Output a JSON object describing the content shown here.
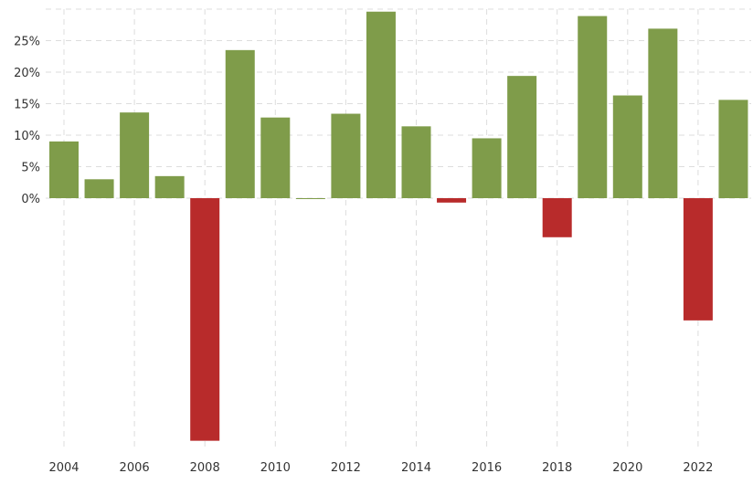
{
  "chart_data": {
    "type": "bar",
    "title": "",
    "xlabel": "",
    "ylabel": "",
    "categories": [
      "2004",
      "2005",
      "2006",
      "2007",
      "2008",
      "2009",
      "2010",
      "2011",
      "2012",
      "2013",
      "2014",
      "2015",
      "2016",
      "2017",
      "2018",
      "2019",
      "2020",
      "2021",
      "2022",
      "2023"
    ],
    "values": [
      9.0,
      3.0,
      13.6,
      3.5,
      -38.5,
      23.5,
      12.8,
      0.0,
      13.4,
      29.6,
      11.4,
      -0.7,
      9.5,
      19.4,
      -6.2,
      28.9,
      16.3,
      26.9,
      -19.4,
      15.6
    ],
    "x_tick_labels": [
      "2004",
      "2006",
      "2008",
      "2010",
      "2012",
      "2014",
      "2016",
      "2018",
      "2020",
      "2022"
    ],
    "y_tick_labels": [
      "0%",
      "5%",
      "10%",
      "15%",
      "20%",
      "25%"
    ],
    "y_ticks": [
      0,
      5,
      10,
      15,
      20,
      25
    ],
    "ylim": [
      -40,
      30
    ],
    "grid": true,
    "legend": "none",
    "colors": {
      "positive": "#7f9c4a",
      "negative": "#b82b2b",
      "grid": "#dddddd"
    }
  }
}
